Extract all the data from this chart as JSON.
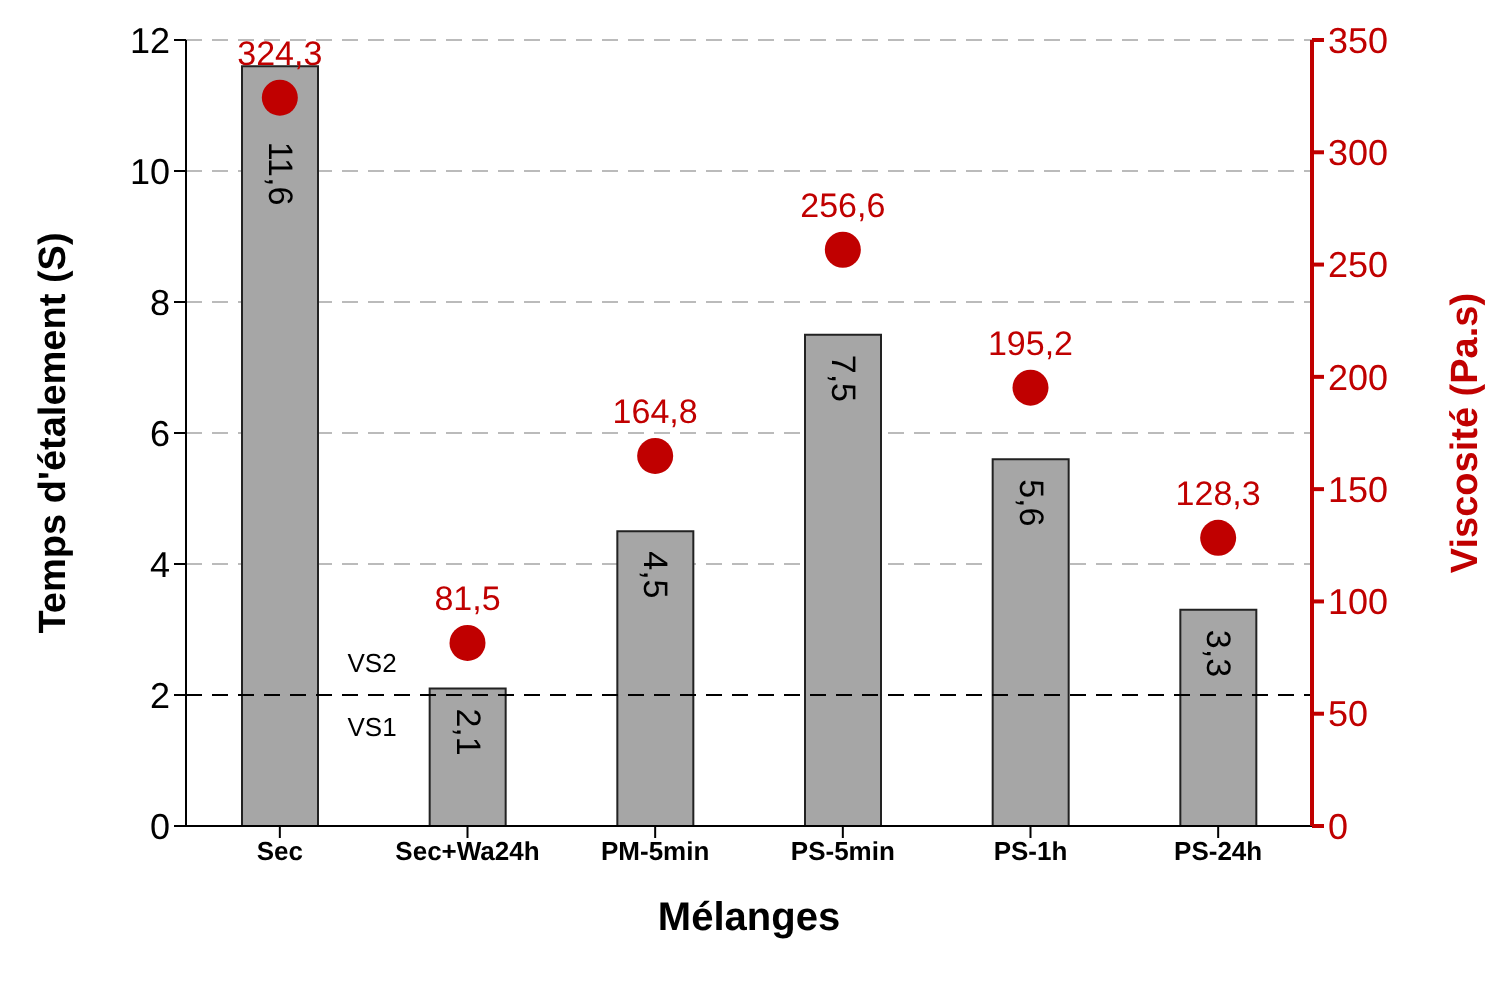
{
  "chart_data": {
    "type": "bar",
    "xlabel": "Mélanges",
    "ylabel": "Temps d'étalement (S)",
    "y2label": "Viscosité (Pa.s)",
    "categories": [
      "Sec",
      "Sec+Wa24h",
      "PM-5min",
      "PS-5min",
      "PS-1h",
      "PS-24h"
    ],
    "series": [
      {
        "color": "#a6a6a6",
        "values": [
          11.6,
          2.1,
          4.5,
          7.5,
          5.6,
          3.3
        ],
        "value_labels": [
          "11,6",
          "2,1",
          "4,5",
          "7,5",
          "5,6",
          "3,3"
        ]
      },
      {
        "type": "scatter",
        "axis": "y2",
        "color": "#c00000",
        "values": [
          324.3,
          81.5,
          164.8,
          256.6,
          195.2,
          128.3
        ],
        "value_labels": [
          "324,3",
          "81,5",
          "164,8",
          "256,6",
          "195,2",
          "128,3"
        ]
      }
    ],
    "ylim": [
      0,
      12
    ],
    "yticks": [
      0,
      2,
      4,
      6,
      8,
      10,
      12
    ],
    "y2lim": [
      0,
      350
    ],
    "y2ticks": [
      0,
      50,
      100,
      150,
      200,
      250,
      300,
      350
    ],
    "grid": "y",
    "marker": "circle",
    "legend": false,
    "ref_lines": [
      {
        "axis": "y",
        "value": 2,
        "color": "#000000",
        "line_style": "dashed"
      }
    ],
    "annotations": [
      "VS2",
      "VS1"
    ]
  }
}
